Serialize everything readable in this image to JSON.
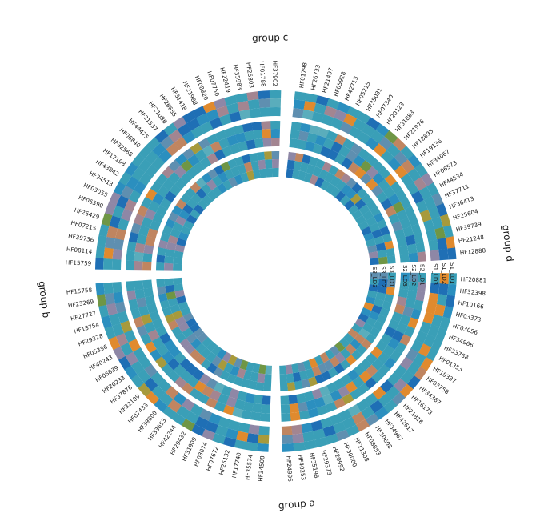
{
  "chart_data": {
    "type": "heatmap",
    "layout": "circular",
    "tracks": [
      {
        "group": "S1",
        "layers": [
          "S1_LD1",
          "S1_LD2",
          "S1_LD3"
        ]
      },
      {
        "group": "S2",
        "layers": [
          "S2_LD1",
          "S2_LD2",
          "S2_LD3"
        ]
      },
      {
        "group": "S3",
        "layers": [
          "S3_LD1",
          "S3_LD2",
          "S3_LD3"
        ]
      }
    ],
    "palette": [
      "#3a9fb7",
      "#2b8fbf",
      "#1f6fb5",
      "#5f8fb0",
      "#8e87a6",
      "#a38591",
      "#c08560",
      "#e08a2e",
      "#a79a3c",
      "#6f9645",
      "#2f8a55",
      "#1f9a78",
      "#5aadbc"
    ],
    "groups": [
      {
        "name": "group a",
        "genes": [
          "HF20881",
          "HF32398",
          "HF10166",
          "HF03373",
          "HF03056",
          "HF34966",
          "HF33768",
          "HF01353",
          "HF19337",
          "HF03758",
          "HF34367",
          "HF16173",
          "HF21816",
          "HF42617",
          "HF34967",
          "HF10608",
          "HF08853",
          "HF11308",
          "HF30000",
          "HF20992",
          "HF29373",
          "HF35198",
          "HF40253",
          "HF24996"
        ]
      },
      {
        "name": "group b",
        "genes": [
          "HF34508",
          "HF35574",
          "HF17740",
          "HF25132",
          "HF07672",
          "HF03074",
          "HF31909",
          "HF29432",
          "HF42244",
          "HF33653",
          "HF39800",
          "HF07433",
          "HF32109",
          "HF37878",
          "HF20233",
          "HF06839",
          "HF40243",
          "HF05356",
          "HF29328",
          "HF18754",
          "HF27727",
          "HF23269",
          "HF15758"
        ]
      },
      {
        "name": "group c",
        "genes": [
          "HF15759",
          "HF08114",
          "HF39736",
          "HF07215",
          "HF26429",
          "HF06590",
          "HF03055",
          "HF24513",
          "HF43842",
          "HF12198",
          "HF32568",
          "HF06840",
          "HF44475",
          "HF21537",
          "HF21086",
          "HF26655",
          "HF31418",
          "HF21988",
          "HF08820",
          "HF07750",
          "HF22419",
          "HF35983",
          "HF25803",
          "HF01788",
          "HF37902"
        ]
      },
      {
        "name": "group d",
        "genes": [
          "HF01798",
          "HF26733",
          "HF21497",
          "HF05928",
          "HF42713",
          "HF05215",
          "HF35031",
          "HF07340",
          "HF20123",
          "HF31883",
          "HF21976",
          "HF18895",
          "HF19136",
          "HF34067",
          "HF06573",
          "HF44534",
          "HF37711",
          "HF36413",
          "HF25604",
          "HF39739",
          "HF21248",
          "HF12888"
        ]
      }
    ]
  }
}
